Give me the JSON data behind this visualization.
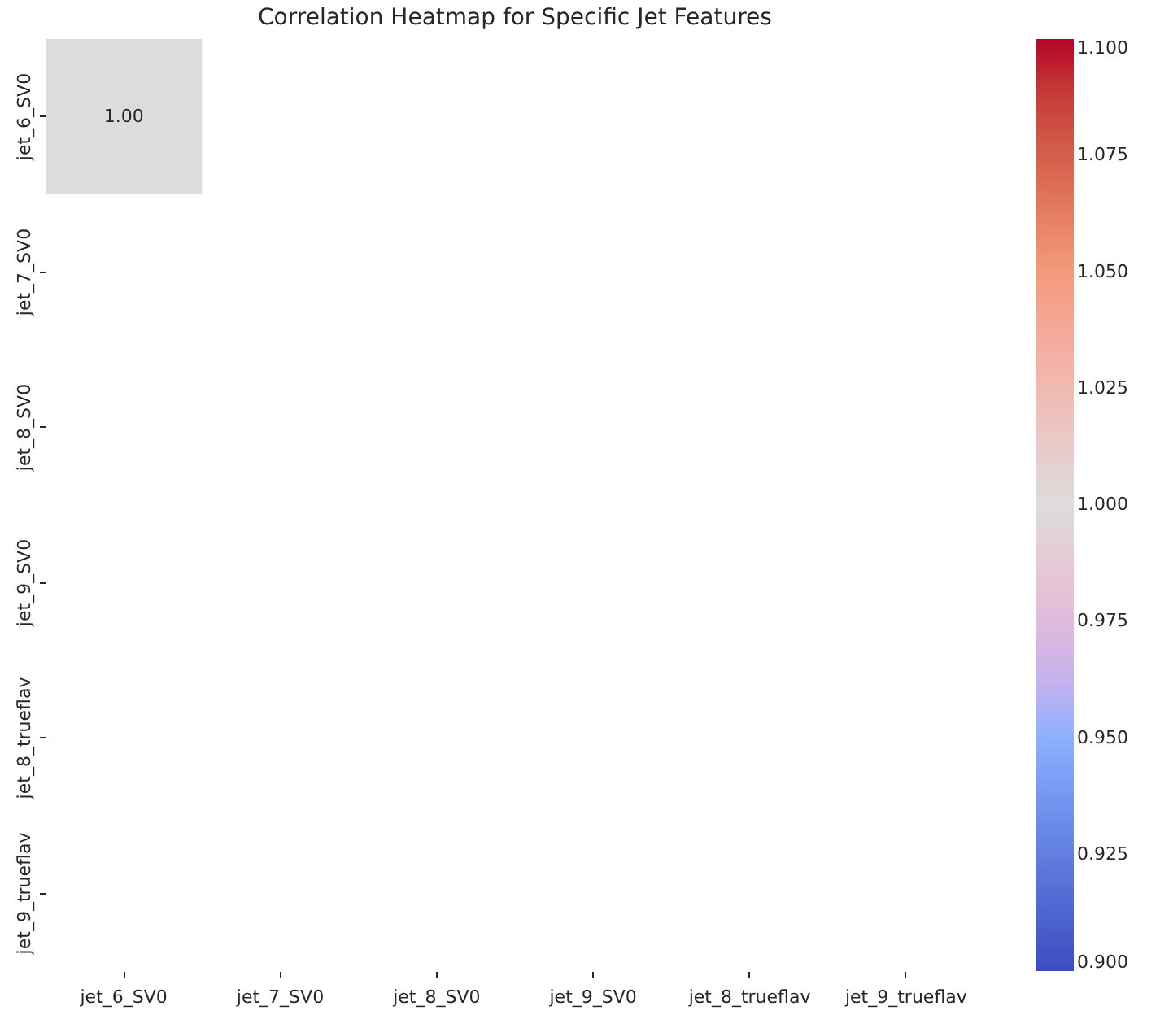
{
  "chart_data": {
    "type": "heatmap",
    "title": "Correlation Heatmap for Specific Jet Features",
    "categories": [
      "jet_6_SV0",
      "jet_7_SV0",
      "jet_8_SV0",
      "jet_9_SV0",
      "jet_8_trueflav",
      "jet_9_trueflav"
    ],
    "y_categories": [
      "jet_6_SV0",
      "jet_7_SV0",
      "jet_8_SV0",
      "jet_9_SV0",
      "jet_8_trueflav",
      "jet_9_trueflav"
    ],
    "cells": [
      [
        1,
        null,
        null,
        null,
        null,
        null
      ],
      [
        null,
        null,
        null,
        null,
        null,
        null
      ],
      [
        null,
        null,
        null,
        null,
        null,
        null
      ],
      [
        null,
        null,
        null,
        null,
        null,
        null
      ],
      [
        null,
        null,
        null,
        null,
        null,
        null
      ],
      [
        null,
        null,
        null,
        null,
        null,
        null
      ]
    ],
    "cell_labels": [
      [
        "1.00",
        null,
        null,
        null,
        null,
        null
      ],
      [
        null,
        null,
        null,
        null,
        null,
        null
      ],
      [
        null,
        null,
        null,
        null,
        null,
        null
      ],
      [
        null,
        null,
        null,
        null,
        null,
        null
      ],
      [
        null,
        null,
        null,
        null,
        null,
        null
      ],
      [
        null,
        null,
        null,
        null,
        null,
        null
      ]
    ],
    "clim": [
      0.9,
      1.1
    ],
    "cticks": [
      {
        "value": 0.9,
        "label": "0.900"
      },
      {
        "value": 0.925,
        "label": "0.925"
      },
      {
        "value": 0.95,
        "label": "0.950"
      },
      {
        "value": 0.975,
        "label": "0.975"
      },
      {
        "value": 1.0,
        "label": "1.000"
      },
      {
        "value": 1.025,
        "label": "1.025"
      },
      {
        "value": 1.05,
        "label": "1.050"
      },
      {
        "value": 1.075,
        "label": "1.075"
      },
      {
        "value": 1.1,
        "label": "1.100"
      }
    ]
  }
}
